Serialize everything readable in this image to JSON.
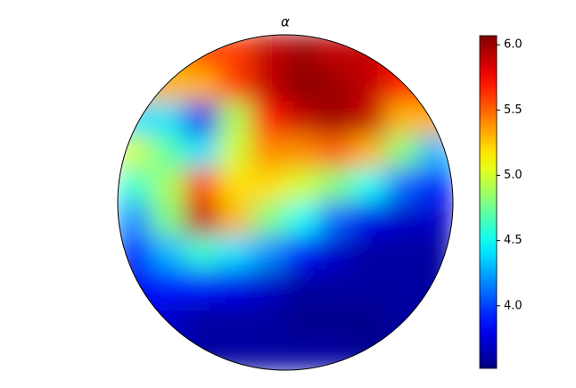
{
  "chart_data": {
    "type": "heatmap",
    "title": "α",
    "grid_values": [
      [
        null,
        null,
        null,
        5.6,
        5.9,
        6.0,
        5.9,
        null,
        null,
        null
      ],
      [
        null,
        5.3,
        5.3,
        5.6,
        5.9,
        6.05,
        6.0,
        5.9,
        5.7,
        null
      ],
      [
        null,
        4.4,
        3.8,
        4.9,
        5.7,
        5.9,
        6.0,
        5.9,
        5.3,
        null
      ],
      [
        5.0,
        4.7,
        4.4,
        5.0,
        5.4,
        5.4,
        5.5,
        5.3,
        4.8,
        4.3
      ],
      [
        4.6,
        4.9,
        5.6,
        5.2,
        5.2,
        5.0,
        4.8,
        4.5,
        4.1,
        3.9
      ],
      [
        4.2,
        4.8,
        5.9,
        5.3,
        4.8,
        4.5,
        4.1,
        3.8,
        3.7,
        3.7
      ],
      [
        3.9,
        4.3,
        4.6,
        4.4,
        4.2,
        3.9,
        3.7,
        3.6,
        3.6,
        3.6
      ],
      [
        3.8,
        3.9,
        3.9,
        3.8,
        3.7,
        3.6,
        3.6,
        3.6,
        3.6,
        null
      ],
      [
        null,
        3.7,
        3.6,
        3.6,
        3.6,
        3.55,
        3.55,
        3.55,
        3.6,
        null
      ],
      [
        null,
        null,
        null,
        3.6,
        3.6,
        3.6,
        3.6,
        null,
        null,
        null
      ]
    ],
    "colormap": "jet",
    "clim": [
      3.52,
      6.07
    ],
    "cticks": [
      {
        "value": 4.0,
        "label": "4.0"
      },
      {
        "value": 4.5,
        "label": "4.5"
      },
      {
        "value": 5.0,
        "label": "5.0"
      },
      {
        "value": 5.5,
        "label": "5.5"
      },
      {
        "value": 6.0,
        "label": "6.0"
      }
    ]
  }
}
